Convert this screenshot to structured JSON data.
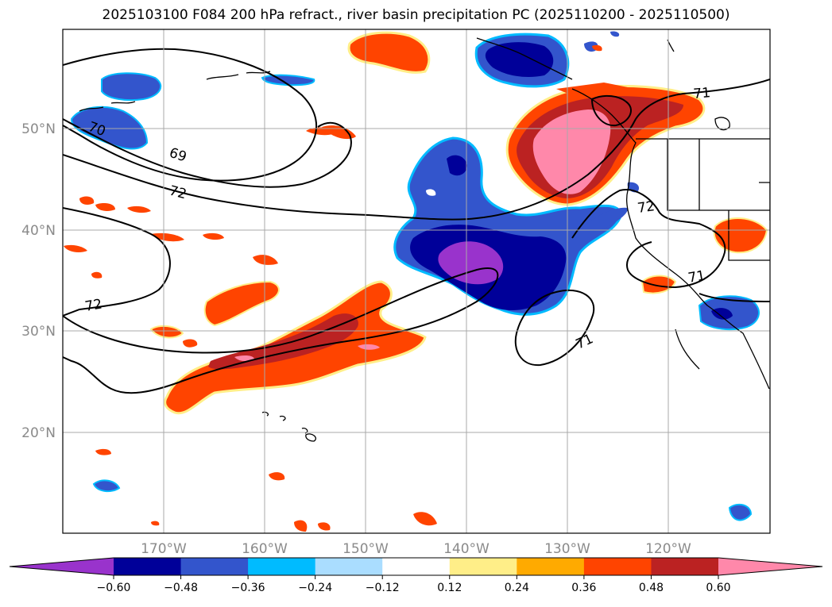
{
  "title": "2025103100 F084 200 hPa refract., river basin precipitation PC (2025110200 - 2025110500)",
  "map": {
    "lat_labels": [
      "50°N",
      "40°N",
      "30°N",
      "20°N"
    ],
    "lon_labels": [
      "170°W",
      "160°W",
      "150°W",
      "140°W",
      "130°W",
      "120°W"
    ],
    "contour_labels": [
      "69",
      "72",
      "72",
      "72",
      "71",
      "71",
      "71",
      "70"
    ],
    "colors": {
      "lt_-0.60": "#9933cc",
      "-0.60_-0.48": "#000099",
      "-0.48_-0.36": "#3355cc",
      "-0.36_-0.24": "#00bbff",
      "-0.24_-0.12": "#aaddff",
      "-0.12_0.12": "#ffffff",
      "0.12_0.24": "#ffee88",
      "0.24_0.36": "#ffaa00",
      "0.36_0.48": "#ff4400",
      "0.48_0.60": "#bb2222",
      "gt_0.60": "#ff88aa"
    }
  },
  "colorbar": {
    "ticks": [
      "−0.60",
      "−0.48",
      "−0.36",
      "−0.24",
      "−0.12",
      "0.12",
      "0.24",
      "0.36",
      "0.48",
      "0.60"
    ],
    "colors": [
      "#9933cc",
      "#000099",
      "#3355cc",
      "#00bbff",
      "#aaddff",
      "#ffffff",
      "#ffee88",
      "#ffaa00",
      "#ff4400",
      "#bb2222",
      "#ff88aa"
    ]
  }
}
